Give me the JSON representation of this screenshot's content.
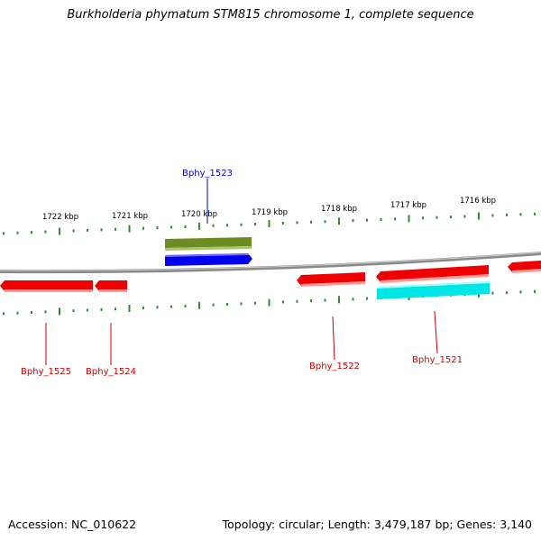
{
  "title": "Burkholderia phymatum STM815 chromosome 1, complete sequence",
  "footer": {
    "accession": "Accession: NC_010622",
    "topology": "Topology: circular; Length: 3,479,187 bp; Genes: 3,140"
  },
  "colors": {
    "backbone": "#8a8a8a",
    "ticks": "#2e8b2e",
    "forward_label": "#0000cc",
    "reverse_label": "#cc0000"
  },
  "scale": {
    "unit": "kbp",
    "labels": [
      "1722 kbp",
      "1721 kbp",
      "1720 kbp",
      "1719 kbp",
      "1718 kbp",
      "1717 kbp",
      "1716 kbp"
    ]
  },
  "genes": [
    {
      "id": "g-olive",
      "strand": "forward",
      "color": "#6b8e23",
      "label": ""
    },
    {
      "id": "bphy_1523",
      "strand": "forward",
      "color": "#0000ee",
      "label": "Bphy_1523"
    },
    {
      "id": "bphy_1525",
      "strand": "reverse",
      "color": "#ee0000",
      "label": "Bphy_1525"
    },
    {
      "id": "bphy_1524",
      "strand": "reverse",
      "color": "#ee0000",
      "label": "Bphy_1524"
    },
    {
      "id": "bphy_1522",
      "strand": "reverse",
      "color": "#ee0000",
      "label": "Bphy_1522"
    },
    {
      "id": "bphy_1521",
      "strand": "reverse",
      "color": "#ee0000",
      "label": "Bphy_1521"
    },
    {
      "id": "g-cyan",
      "strand": "reverse",
      "color": "#00e5e5",
      "label": ""
    },
    {
      "id": "g-edge",
      "strand": "reverse",
      "color": "#ee0000",
      "label": ""
    }
  ]
}
